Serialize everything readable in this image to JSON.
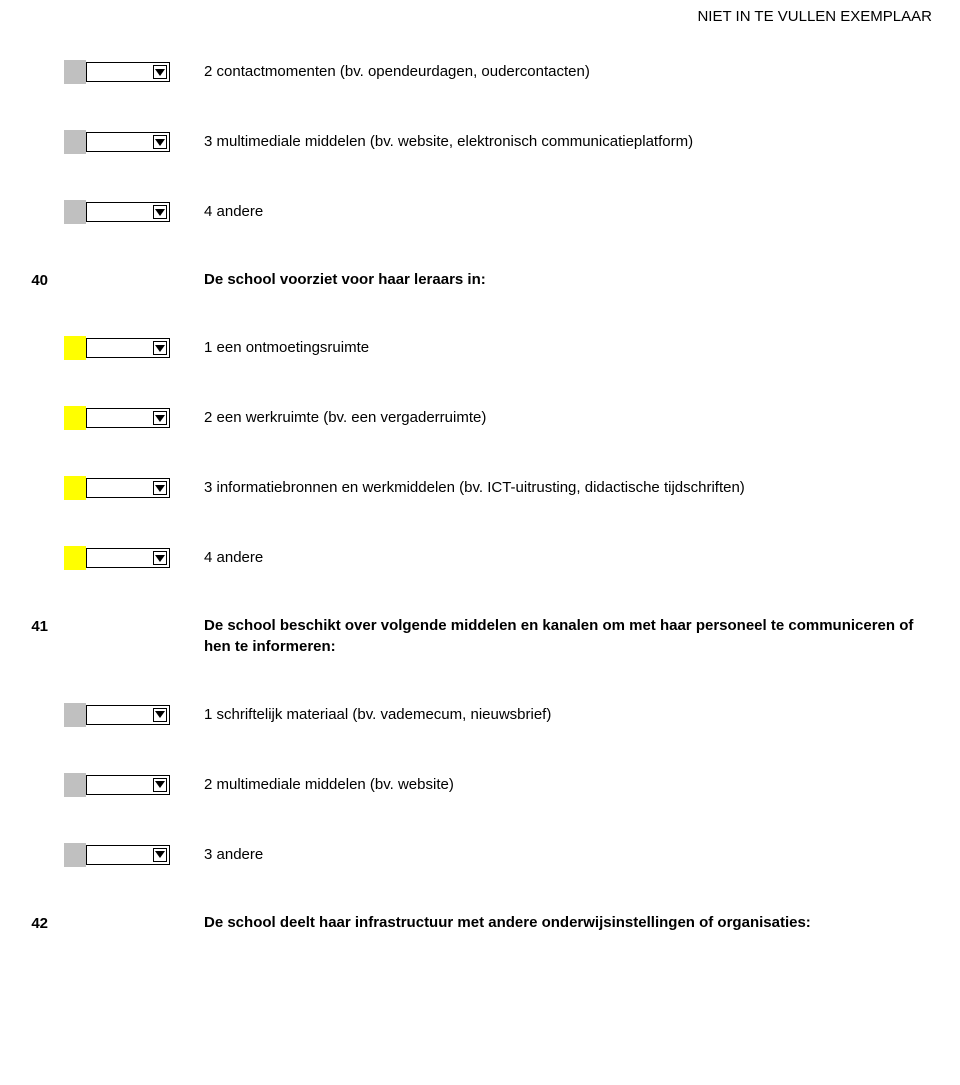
{
  "header_note": "NIET IN TE VULLEN EXEMPLAAR",
  "colors": {
    "gray": "#c0c0c0",
    "yellow": "#ffff00"
  },
  "items": [
    {
      "kind": "option",
      "color_key": "gray",
      "text": "2 contactmomenten (bv. opendeurdagen, oudercontacten)"
    },
    {
      "kind": "option",
      "color_key": "gray",
      "text": "3 multimediale middelen (bv. website, elektronisch communicatieplatform)"
    },
    {
      "kind": "option",
      "color_key": "gray",
      "text": "4 andere"
    },
    {
      "kind": "question",
      "number": "40",
      "text": "De school voorziet voor haar leraars in:"
    },
    {
      "kind": "option",
      "color_key": "yellow",
      "text": "1 een ontmoetingsruimte"
    },
    {
      "kind": "option",
      "color_key": "yellow",
      "text": "2 een werkruimte (bv. een vergaderruimte)"
    },
    {
      "kind": "option",
      "color_key": "yellow",
      "text": "3 informatiebronnen en werkmiddelen (bv. ICT-uitrusting, didactische tijdschriften)"
    },
    {
      "kind": "option",
      "color_key": "yellow",
      "text": "4 andere"
    },
    {
      "kind": "question",
      "number": "41",
      "text": "De school beschikt over volgende middelen en kanalen om met haar personeel te communiceren of hen te informeren:"
    },
    {
      "kind": "option",
      "color_key": "gray",
      "text": "1 schriftelijk materiaal (bv. vademecum, nieuwsbrief)"
    },
    {
      "kind": "option",
      "color_key": "gray",
      "text": "2 multimediale middelen (bv. website)"
    },
    {
      "kind": "option",
      "color_key": "gray",
      "text": "3 andere"
    },
    {
      "kind": "question",
      "number": "42",
      "text": "De school deelt haar infrastructuur met andere onderwijsinstellingen of organisaties:"
    }
  ]
}
